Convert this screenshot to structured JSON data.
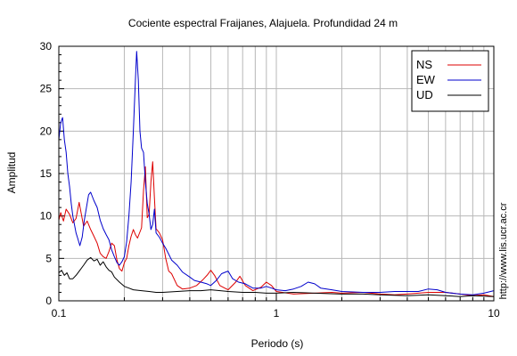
{
  "chart_data": {
    "type": "line",
    "title": "Cociente espectral Fraijanes, Alajuela. Profundidad 24 m",
    "xlabel": "Periodo (s)",
    "ylabel": "Amplitud",
    "x_scale": "log",
    "xlim": [
      0.1,
      10
    ],
    "ylim": [
      0,
      30
    ],
    "x_ticks": [
      0.1,
      1,
      10
    ],
    "x_tick_labels": [
      "0.1",
      "1",
      "10"
    ],
    "y_ticks": [
      0,
      5,
      10,
      15,
      20,
      25,
      30
    ],
    "y_tick_labels": [
      "0",
      "5",
      "10",
      "15",
      "20",
      "25",
      "30"
    ],
    "grid": true,
    "legend_position": "top-right",
    "side_text": "http://www.lis.ucr.ac.cr",
    "series": [
      {
        "name": "NS",
        "color": "#dd0000",
        "points": [
          [
            0.1,
            9.5
          ],
          [
            0.102,
            10.4
          ],
          [
            0.105,
            9.4
          ],
          [
            0.108,
            10.8
          ],
          [
            0.112,
            10.2
          ],
          [
            0.116,
            9.2
          ],
          [
            0.12,
            9.7
          ],
          [
            0.124,
            11.6
          ],
          [
            0.127,
            10.2
          ],
          [
            0.13,
            8.8
          ],
          [
            0.135,
            9.4
          ],
          [
            0.14,
            8.4
          ],
          [
            0.145,
            7.6
          ],
          [
            0.15,
            6.8
          ],
          [
            0.155,
            5.6
          ],
          [
            0.16,
            5.2
          ],
          [
            0.165,
            5.0
          ],
          [
            0.17,
            5.8
          ],
          [
            0.175,
            6.8
          ],
          [
            0.18,
            6.5
          ],
          [
            0.185,
            4.8
          ],
          [
            0.19,
            3.8
          ],
          [
            0.195,
            3.5
          ],
          [
            0.2,
            4.5
          ],
          [
            0.205,
            5.0
          ],
          [
            0.21,
            6.5
          ],
          [
            0.215,
            7.6
          ],
          [
            0.22,
            8.4
          ],
          [
            0.225,
            7.8
          ],
          [
            0.23,
            7.4
          ],
          [
            0.24,
            8.6
          ],
          [
            0.245,
            13.0
          ],
          [
            0.25,
            15.8
          ],
          [
            0.255,
            9.8
          ],
          [
            0.26,
            10.2
          ],
          [
            0.265,
            14.0
          ],
          [
            0.27,
            16.4
          ],
          [
            0.275,
            12.2
          ],
          [
            0.28,
            8.5
          ],
          [
            0.29,
            8.0
          ],
          [
            0.3,
            7.2
          ],
          [
            0.31,
            5.0
          ],
          [
            0.32,
            3.5
          ],
          [
            0.33,
            3.2
          ],
          [
            0.35,
            1.8
          ],
          [
            0.37,
            1.4
          ],
          [
            0.4,
            1.5
          ],
          [
            0.43,
            1.8
          ],
          [
            0.46,
            2.5
          ],
          [
            0.48,
            3.0
          ],
          [
            0.5,
            3.6
          ],
          [
            0.52,
            3.0
          ],
          [
            0.55,
            1.8
          ],
          [
            0.6,
            1.3
          ],
          [
            0.65,
            2.2
          ],
          [
            0.68,
            2.9
          ],
          [
            0.72,
            1.8
          ],
          [
            0.78,
            1.2
          ],
          [
            0.85,
            1.6
          ],
          [
            0.9,
            2.2
          ],
          [
            0.95,
            1.8
          ],
          [
            1.0,
            1.1
          ],
          [
            1.2,
            0.8
          ],
          [
            1.5,
            0.9
          ],
          [
            1.8,
            1.0
          ],
          [
            2.0,
            0.9
          ],
          [
            2.5,
            1.0
          ],
          [
            3.0,
            0.8
          ],
          [
            3.5,
            0.7
          ],
          [
            4.0,
            0.8
          ],
          [
            5.0,
            1.0
          ],
          [
            6.0,
            1.0
          ],
          [
            7.0,
            0.8
          ],
          [
            8.0,
            0.6
          ],
          [
            9.0,
            0.7
          ],
          [
            10.0,
            0.5
          ]
        ]
      },
      {
        "name": "EW",
        "color": "#0000cc",
        "points": [
          [
            0.1,
            19.0
          ],
          [
            0.102,
            21.0
          ],
          [
            0.104,
            21.6
          ],
          [
            0.106,
            19.0
          ],
          [
            0.108,
            17.5
          ],
          [
            0.11,
            15.0
          ],
          [
            0.112,
            13.5
          ],
          [
            0.114,
            11.5
          ],
          [
            0.116,
            10.0
          ],
          [
            0.118,
            9.0
          ],
          [
            0.12,
            8.0
          ],
          [
            0.122,
            7.4
          ],
          [
            0.125,
            6.5
          ],
          [
            0.128,
            7.5
          ],
          [
            0.131,
            9.5
          ],
          [
            0.134,
            11.0
          ],
          [
            0.137,
            12.5
          ],
          [
            0.14,
            12.8
          ],
          [
            0.145,
            11.8
          ],
          [
            0.15,
            11.0
          ],
          [
            0.155,
            9.5
          ],
          [
            0.16,
            8.5
          ],
          [
            0.165,
            7.8
          ],
          [
            0.17,
            7.2
          ],
          [
            0.175,
            6.0
          ],
          [
            0.18,
            5.2
          ],
          [
            0.185,
            4.5
          ],
          [
            0.19,
            4.2
          ],
          [
            0.195,
            4.6
          ],
          [
            0.2,
            5.2
          ],
          [
            0.205,
            7.0
          ],
          [
            0.21,
            10.0
          ],
          [
            0.215,
            14.0
          ],
          [
            0.22,
            20.0
          ],
          [
            0.225,
            26.0
          ],
          [
            0.228,
            29.4
          ],
          [
            0.232,
            26.0
          ],
          [
            0.236,
            20.0
          ],
          [
            0.24,
            18.0
          ],
          [
            0.245,
            17.5
          ],
          [
            0.25,
            14.0
          ],
          [
            0.255,
            11.5
          ],
          [
            0.26,
            10.2
          ],
          [
            0.265,
            8.4
          ],
          [
            0.27,
            9.0
          ],
          [
            0.275,
            10.8
          ],
          [
            0.28,
            8.0
          ],
          [
            0.29,
            7.5
          ],
          [
            0.3,
            6.8
          ],
          [
            0.31,
            6.2
          ],
          [
            0.32,
            5.5
          ],
          [
            0.33,
            4.8
          ],
          [
            0.35,
            4.2
          ],
          [
            0.37,
            3.4
          ],
          [
            0.4,
            2.8
          ],
          [
            0.42,
            2.4
          ],
          [
            0.45,
            2.2
          ],
          [
            0.48,
            2.0
          ],
          [
            0.5,
            1.8
          ],
          [
            0.53,
            2.4
          ],
          [
            0.56,
            3.2
          ],
          [
            0.6,
            3.5
          ],
          [
            0.63,
            2.6
          ],
          [
            0.67,
            2.2
          ],
          [
            0.72,
            2.0
          ],
          [
            0.78,
            1.5
          ],
          [
            0.85,
            1.5
          ],
          [
            0.9,
            1.7
          ],
          [
            0.95,
            1.5
          ],
          [
            1.0,
            1.3
          ],
          [
            1.1,
            1.2
          ],
          [
            1.2,
            1.4
          ],
          [
            1.3,
            1.7
          ],
          [
            1.4,
            2.2
          ],
          [
            1.5,
            2.0
          ],
          [
            1.6,
            1.5
          ],
          [
            1.8,
            1.3
          ],
          [
            2.0,
            1.1
          ],
          [
            2.5,
            1.0
          ],
          [
            3.0,
            1.0
          ],
          [
            3.5,
            1.1
          ],
          [
            4.0,
            1.1
          ],
          [
            4.5,
            1.1
          ],
          [
            5.0,
            1.4
          ],
          [
            5.5,
            1.3
          ],
          [
            6.0,
            1.0
          ],
          [
            7.0,
            0.8
          ],
          [
            8.0,
            0.7
          ],
          [
            9.0,
            0.9
          ],
          [
            10.0,
            1.2
          ]
        ]
      },
      {
        "name": "UD",
        "color": "#000000",
        "points": [
          [
            0.1,
            3.3
          ],
          [
            0.103,
            3.6
          ],
          [
            0.106,
            3.0
          ],
          [
            0.109,
            3.3
          ],
          [
            0.112,
            2.6
          ],
          [
            0.116,
            2.6
          ],
          [
            0.12,
            3.0
          ],
          [
            0.125,
            3.6
          ],
          [
            0.13,
            4.2
          ],
          [
            0.135,
            4.8
          ],
          [
            0.14,
            5.1
          ],
          [
            0.145,
            4.7
          ],
          [
            0.15,
            4.9
          ],
          [
            0.155,
            4.2
          ],
          [
            0.16,
            4.6
          ],
          [
            0.165,
            4.0
          ],
          [
            0.17,
            3.6
          ],
          [
            0.175,
            3.4
          ],
          [
            0.18,
            2.8
          ],
          [
            0.19,
            2.2
          ],
          [
            0.2,
            1.7
          ],
          [
            0.21,
            1.5
          ],
          [
            0.22,
            1.3
          ],
          [
            0.24,
            1.2
          ],
          [
            0.26,
            1.1
          ],
          [
            0.28,
            1.0
          ],
          [
            0.3,
            1.0
          ],
          [
            0.35,
            1.1
          ],
          [
            0.4,
            1.2
          ],
          [
            0.45,
            1.2
          ],
          [
            0.5,
            1.3
          ],
          [
            0.6,
            1.1
          ],
          [
            0.7,
            1.0
          ],
          [
            0.8,
            1.0
          ],
          [
            0.9,
            0.9
          ],
          [
            1.0,
            0.9
          ],
          [
            1.2,
            1.0
          ],
          [
            1.5,
            0.9
          ],
          [
            2.0,
            0.8
          ],
          [
            2.5,
            0.8
          ],
          [
            3.0,
            0.7
          ],
          [
            4.0,
            0.6
          ],
          [
            5.0,
            0.7
          ],
          [
            6.0,
            0.6
          ],
          [
            7.0,
            0.5
          ],
          [
            8.0,
            0.6
          ],
          [
            10.0,
            0.5
          ]
        ]
      }
    ]
  }
}
